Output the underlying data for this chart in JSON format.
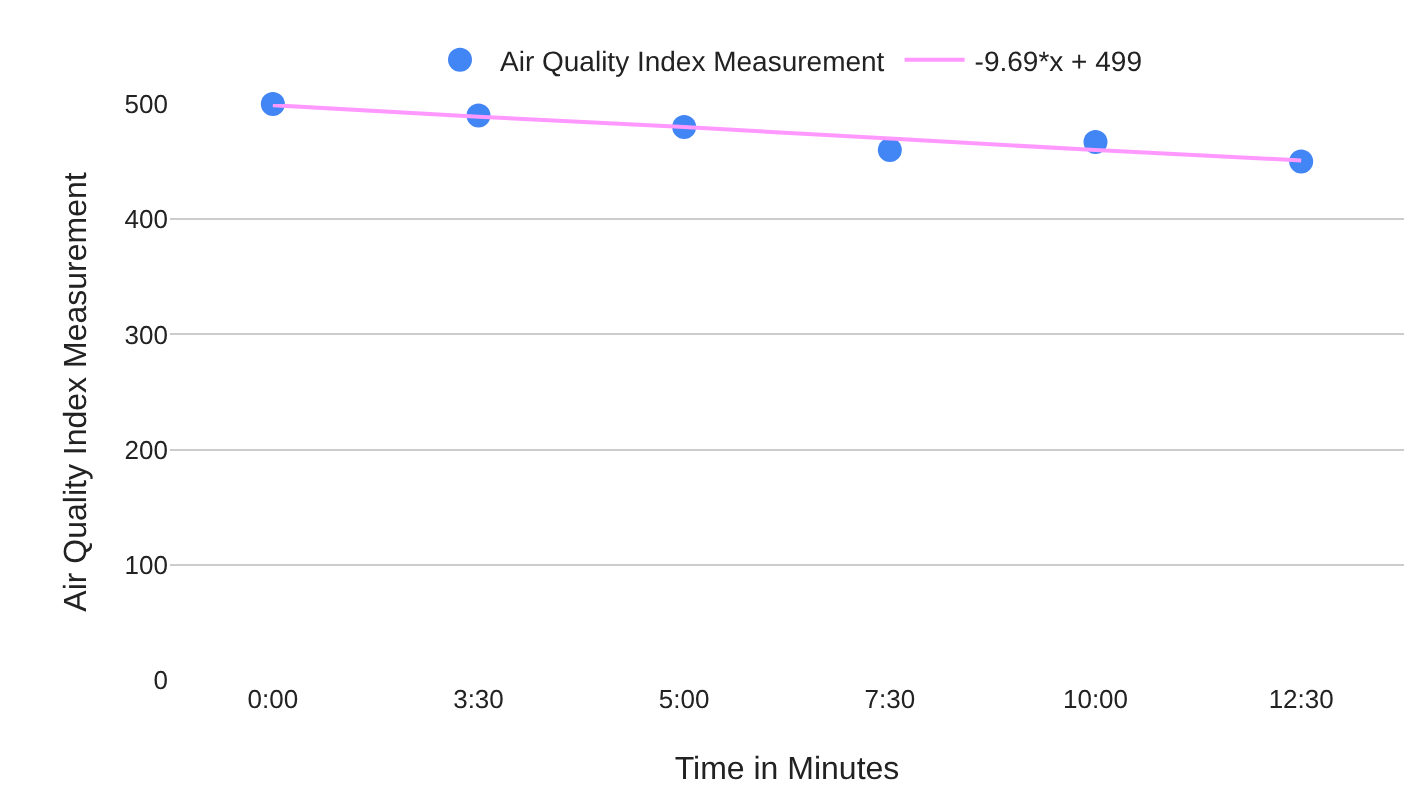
{
  "chart_data": {
    "type": "scatter",
    "xlabel": "Time in Minutes",
    "ylabel": "Air Quality Index Measurement",
    "categories": [
      "0:00",
      "3:30",
      "5:00",
      "7:30",
      "10:00",
      "12:30"
    ],
    "series": [
      {
        "name": "Air Quality Index Measurement",
        "color": "#4285f4",
        "marker": "circle",
        "values": [
          500,
          490,
          480,
          460,
          467,
          450
        ]
      },
      {
        "name": "-9.69*x + 499",
        "type": "line",
        "color": "#ff99ff",
        "marker": "none",
        "values": [
          499,
          489,
          480,
          470,
          460,
          451
        ]
      }
    ],
    "ylim": [
      0,
      500
    ],
    "yticks": [
      0,
      100,
      200,
      300,
      400,
      500
    ],
    "grid": "y",
    "legend": "top"
  }
}
